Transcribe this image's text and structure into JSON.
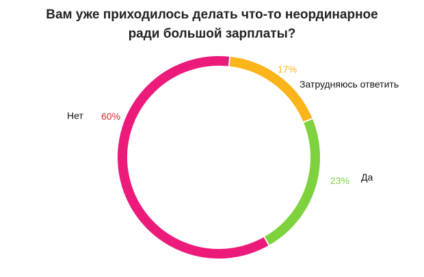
{
  "chart_data": {
    "type": "pie",
    "style": "donut",
    "title_lines": [
      "Вам уже приходилось делать что-то неординарное",
      "ради большой зарплаты?"
    ],
    "slices": [
      {
        "label": "Затрудняюсь ответить",
        "value": 17,
        "value_label": "17%",
        "color": "#fbb419"
      },
      {
        "label": "Да",
        "value": 23,
        "value_label": "23%",
        "color": "#7ed23d"
      },
      {
        "label": "Нет",
        "value": 60,
        "value_label": "60%",
        "color": "#ec1a7a",
        "value_label_color": "#d72a2a"
      }
    ]
  }
}
